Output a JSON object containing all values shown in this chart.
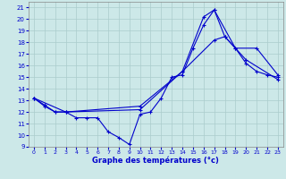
{
  "xlabel": "Graphe des températures (°c)",
  "background_color": "#cce8e8",
  "grid_color": "#aacccc",
  "line_color": "#0000cc",
  "xlim": [
    -0.5,
    23.5
  ],
  "ylim": [
    9,
    21.5
  ],
  "xticks": [
    0,
    1,
    2,
    3,
    4,
    5,
    6,
    7,
    8,
    9,
    10,
    11,
    12,
    13,
    14,
    15,
    16,
    17,
    18,
    19,
    20,
    21,
    22,
    23
  ],
  "yticks": [
    9,
    10,
    11,
    12,
    13,
    14,
    15,
    16,
    17,
    18,
    19,
    20,
    21
  ],
  "line1": {
    "x": [
      0,
      1,
      2,
      3,
      4,
      5,
      6,
      7,
      8,
      9,
      10,
      11,
      12,
      13,
      14,
      15,
      16,
      17,
      18,
      19,
      20,
      21,
      22,
      23
    ],
    "y": [
      13.2,
      12.6,
      12.0,
      12.0,
      11.5,
      11.5,
      11.5,
      10.3,
      9.8,
      9.2,
      11.8,
      12.0,
      13.2,
      15.0,
      15.2,
      17.5,
      19.5,
      20.8,
      18.5,
      17.5,
      16.2,
      15.5,
      15.2,
      15.0
    ]
  },
  "line2": {
    "x": [
      0,
      1,
      2,
      3,
      10,
      14,
      16,
      17,
      19,
      21,
      23
    ],
    "y": [
      13.2,
      12.5,
      12.0,
      12.0,
      12.2,
      15.5,
      20.2,
      20.8,
      17.5,
      17.5,
      15.2
    ]
  },
  "line3": {
    "x": [
      0,
      3,
      10,
      14,
      17,
      18,
      20,
      23
    ],
    "y": [
      13.2,
      12.0,
      12.5,
      15.5,
      18.2,
      18.5,
      16.5,
      14.8
    ]
  }
}
